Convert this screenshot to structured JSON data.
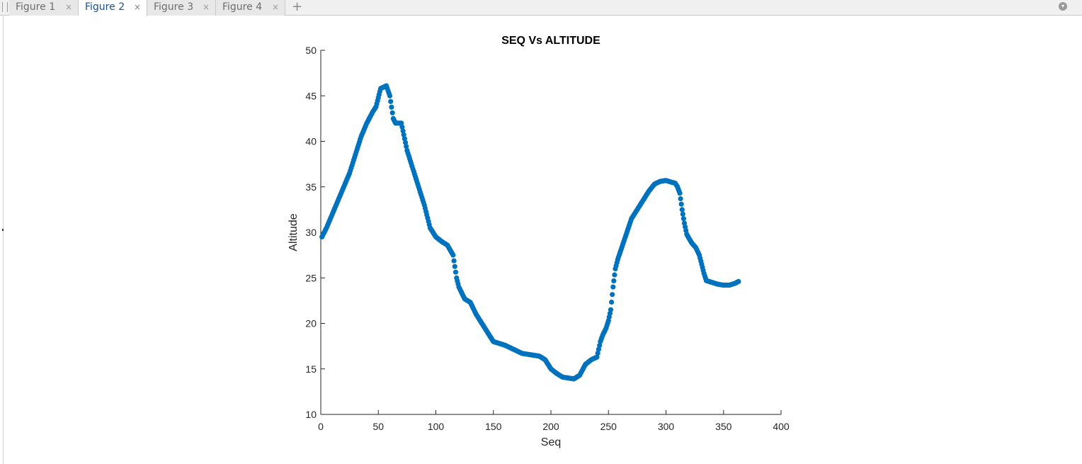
{
  "tabs": [
    {
      "label": "Figure 1",
      "close": "×",
      "active": false
    },
    {
      "label": "Figure 2",
      "close": "×",
      "active": true
    },
    {
      "label": "Figure 3",
      "close": "×",
      "active": false
    },
    {
      "label": "Figure 4",
      "close": "×",
      "active": false
    }
  ],
  "add_tab_label": "+",
  "colors": {
    "marker": "#0072BD",
    "axis": "#262626",
    "active_tab_text": "#1b4f8c"
  },
  "icons": {
    "add_tab": "plus-icon",
    "window_menu": "circle-menu-icon",
    "tab_close": "close-icon"
  },
  "chart_data": {
    "type": "scatter",
    "title": "SEQ Vs ALTITUDE",
    "xlabel": "Seq",
    "ylabel": "Altitude",
    "xlim": [
      0,
      400
    ],
    "ylim": [
      10,
      50
    ],
    "xticks": [
      0,
      50,
      100,
      150,
      200,
      250,
      300,
      350,
      400
    ],
    "yticks": [
      10,
      15,
      20,
      25,
      30,
      35,
      40,
      45,
      50
    ],
    "grid": false,
    "legend": "none",
    "series": [
      {
        "marker": "filled-circle",
        "anchors": [
          [
            1,
            29.5
          ],
          [
            5,
            30.5
          ],
          [
            10,
            32
          ],
          [
            15,
            33.5
          ],
          [
            20,
            35
          ],
          [
            25,
            36.5
          ],
          [
            30,
            38.5
          ],
          [
            35,
            40.5
          ],
          [
            40,
            42
          ],
          [
            45,
            43.2
          ],
          [
            48,
            43.8
          ],
          [
            52,
            45.8
          ],
          [
            57,
            46.1
          ],
          [
            60,
            45
          ],
          [
            63,
            42.5
          ],
          [
            65,
            42
          ],
          [
            70,
            42
          ],
          [
            75,
            39
          ],
          [
            80,
            37
          ],
          [
            85,
            35
          ],
          [
            90,
            33
          ],
          [
            95,
            30.5
          ],
          [
            100,
            29.5
          ],
          [
            105,
            29
          ],
          [
            110,
            28.6
          ],
          [
            115,
            27.5
          ],
          [
            118,
            25
          ],
          [
            120,
            24
          ],
          [
            125,
            22.7
          ],
          [
            130,
            22.3
          ],
          [
            135,
            21
          ],
          [
            140,
            20
          ],
          [
            145,
            19
          ],
          [
            150,
            18
          ],
          [
            155,
            17.8
          ],
          [
            160,
            17.6
          ],
          [
            165,
            17.3
          ],
          [
            170,
            17
          ],
          [
            175,
            16.7
          ],
          [
            180,
            16.6
          ],
          [
            185,
            16.5
          ],
          [
            190,
            16.4
          ],
          [
            195,
            16
          ],
          [
            200,
            15
          ],
          [
            205,
            14.5
          ],
          [
            210,
            14.1
          ],
          [
            215,
            14
          ],
          [
            220,
            13.9
          ],
          [
            225,
            14.3
          ],
          [
            230,
            15.5
          ],
          [
            235,
            16
          ],
          [
            240,
            16.3
          ],
          [
            243,
            18
          ],
          [
            245,
            18.7
          ],
          [
            248,
            19.5
          ],
          [
            250,
            20.3
          ],
          [
            252,
            21.5
          ],
          [
            254,
            24
          ],
          [
            256,
            26
          ],
          [
            258,
            27
          ],
          [
            262,
            28.5
          ],
          [
            266,
            30
          ],
          [
            270,
            31.5
          ],
          [
            275,
            32.5
          ],
          [
            280,
            33.5
          ],
          [
            285,
            34.5
          ],
          [
            290,
            35.3
          ],
          [
            295,
            35.6
          ],
          [
            300,
            35.7
          ],
          [
            305,
            35.5
          ],
          [
            308,
            35.4
          ],
          [
            310,
            35
          ],
          [
            312,
            34.3
          ],
          [
            314,
            32.5
          ],
          [
            316,
            31
          ],
          [
            318,
            29.8
          ],
          [
            322,
            28.9
          ],
          [
            326,
            28.3
          ],
          [
            329,
            27.5
          ],
          [
            331,
            26.5
          ],
          [
            333,
            25.5
          ],
          [
            335,
            24.7
          ],
          [
            340,
            24.5
          ],
          [
            345,
            24.3
          ],
          [
            350,
            24.2
          ],
          [
            355,
            24.2
          ],
          [
            360,
            24.4
          ],
          [
            363,
            24.6
          ]
        ]
      }
    ]
  }
}
